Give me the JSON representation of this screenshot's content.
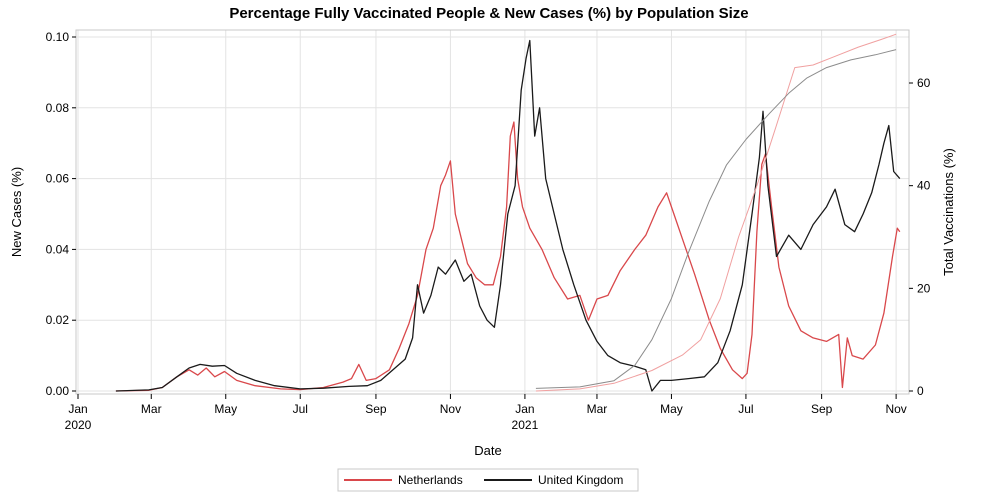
{
  "chart_data": {
    "type": "line",
    "title": "Percentage Fully Vaccinated People & New Cases (%) by Population Size",
    "xlabel": "Date",
    "ylabel_left": "New Cases (%)",
    "ylabel_right": "Total Vaccinations (%)",
    "ylim_left": [
      0,
      0.1
    ],
    "ylim_right": [
      0,
      70
    ],
    "xlim": [
      "2020-01-01",
      "2021-11-05"
    ],
    "grid": true,
    "legend_position": "bottom",
    "yticks_left": [
      "0.00",
      "0.02",
      "0.04",
      "0.06",
      "0.08",
      "0.10"
    ],
    "yticks_left_values": [
      0,
      0.02,
      0.04,
      0.06,
      0.08,
      0.1
    ],
    "yticks_right": [
      "0",
      "20",
      "40",
      "60"
    ],
    "yticks_right_values": [
      0,
      20,
      40,
      60
    ],
    "xticks": [
      {
        "date": "2020-01-01",
        "label": "Jan",
        "label2": "2020"
      },
      {
        "date": "2020-03-01",
        "label": "Mar",
        "label2": ""
      },
      {
        "date": "2020-05-01",
        "label": "May",
        "label2": ""
      },
      {
        "date": "2020-07-01",
        "label": "Jul",
        "label2": ""
      },
      {
        "date": "2020-09-01",
        "label": "Sep",
        "label2": ""
      },
      {
        "date": "2020-11-01",
        "label": "Nov",
        "label2": ""
      },
      {
        "date": "2021-01-01",
        "label": "Jan",
        "label2": "2021"
      },
      {
        "date": "2021-03-01",
        "label": "Mar",
        "label2": ""
      },
      {
        "date": "2021-05-01",
        "label": "May",
        "label2": ""
      },
      {
        "date": "2021-07-01",
        "label": "Jul",
        "label2": ""
      },
      {
        "date": "2021-09-01",
        "label": "Sep",
        "label2": ""
      },
      {
        "date": "2021-11-01",
        "label": "Nov",
        "label2": ""
      }
    ],
    "colors": {
      "Netherlands": "#d9484b",
      "Netherlands_vaccination": "#f0a0a0",
      "United Kingdom": "#1a1a1a",
      "United Kingdom_vaccination": "#8c8c8c"
    },
    "series": [
      {
        "name": "Netherlands",
        "axis": "left",
        "points": [
          [
            "2020-02-01",
            0.0
          ],
          [
            "2020-02-28",
            0.0002
          ],
          [
            "2020-03-10",
            0.001
          ],
          [
            "2020-03-22",
            0.004
          ],
          [
            "2020-04-01",
            0.006
          ],
          [
            "2020-04-08",
            0.0045
          ],
          [
            "2020-04-15",
            0.0065
          ],
          [
            "2020-04-22",
            0.004
          ],
          [
            "2020-04-30",
            0.0055
          ],
          [
            "2020-05-10",
            0.003
          ],
          [
            "2020-05-25",
            0.0015
          ],
          [
            "2020-06-15",
            0.0006
          ],
          [
            "2020-07-01",
            0.0004
          ],
          [
            "2020-07-20",
            0.001
          ],
          [
            "2020-08-05",
            0.0025
          ],
          [
            "2020-08-12",
            0.0035
          ],
          [
            "2020-08-18",
            0.0075
          ],
          [
            "2020-08-24",
            0.003
          ],
          [
            "2020-09-01",
            0.0035
          ],
          [
            "2020-09-12",
            0.006
          ],
          [
            "2020-09-20",
            0.012
          ],
          [
            "2020-09-28",
            0.019
          ],
          [
            "2020-10-05",
            0.027
          ],
          [
            "2020-10-12",
            0.04
          ],
          [
            "2020-10-18",
            0.046
          ],
          [
            "2020-10-24",
            0.058
          ],
          [
            "2020-10-28",
            0.061
          ],
          [
            "2020-11-01",
            0.065
          ],
          [
            "2020-11-05",
            0.05
          ],
          [
            "2020-11-10",
            0.043
          ],
          [
            "2020-11-15",
            0.036
          ],
          [
            "2020-11-22",
            0.032
          ],
          [
            "2020-11-29",
            0.03
          ],
          [
            "2020-12-06",
            0.03
          ],
          [
            "2020-12-12",
            0.038
          ],
          [
            "2020-12-17",
            0.052
          ],
          [
            "2020-12-20",
            0.072
          ],
          [
            "2020-12-23",
            0.076
          ],
          [
            "2020-12-26",
            0.06
          ],
          [
            "2020-12-30",
            0.052
          ],
          [
            "2021-01-05",
            0.046
          ],
          [
            "2021-01-15",
            0.04
          ],
          [
            "2021-01-25",
            0.032
          ],
          [
            "2021-02-05",
            0.026
          ],
          [
            "2021-02-15",
            0.027
          ],
          [
            "2021-02-22",
            0.02
          ],
          [
            "2021-03-01",
            0.026
          ],
          [
            "2021-03-10",
            0.027
          ],
          [
            "2021-03-20",
            0.034
          ],
          [
            "2021-04-01",
            0.04
          ],
          [
            "2021-04-10",
            0.044
          ],
          [
            "2021-04-20",
            0.052
          ],
          [
            "2021-04-27",
            0.056
          ],
          [
            "2021-05-03",
            0.05
          ],
          [
            "2021-05-10",
            0.043
          ],
          [
            "2021-05-20",
            0.033
          ],
          [
            "2021-06-01",
            0.02
          ],
          [
            "2021-06-10",
            0.012
          ],
          [
            "2021-06-20",
            0.006
          ],
          [
            "2021-06-28",
            0.0035
          ],
          [
            "2021-07-02",
            0.005
          ],
          [
            "2021-07-06",
            0.016
          ],
          [
            "2021-07-10",
            0.045
          ],
          [
            "2021-07-14",
            0.064
          ],
          [
            "2021-07-17",
            0.067
          ],
          [
            "2021-07-22",
            0.052
          ],
          [
            "2021-07-28",
            0.035
          ],
          [
            "2021-08-05",
            0.024
          ],
          [
            "2021-08-15",
            0.017
          ],
          [
            "2021-08-25",
            0.015
          ],
          [
            "2021-09-05",
            0.014
          ],
          [
            "2021-09-15",
            0.016
          ],
          [
            "2021-09-18",
            0.001
          ],
          [
            "2021-09-22",
            0.015
          ],
          [
            "2021-09-26",
            0.01
          ],
          [
            "2021-10-05",
            0.009
          ],
          [
            "2021-10-15",
            0.013
          ],
          [
            "2021-10-22",
            0.022
          ],
          [
            "2021-10-29",
            0.038
          ],
          [
            "2021-11-02",
            0.046
          ],
          [
            "2021-11-04",
            0.045
          ]
        ]
      },
      {
        "name": "United Kingdom",
        "axis": "left",
        "points": [
          [
            "2020-02-01",
            0.0
          ],
          [
            "2020-02-28",
            0.0003
          ],
          [
            "2020-03-10",
            0.001
          ],
          [
            "2020-03-22",
            0.004
          ],
          [
            "2020-04-01",
            0.0065
          ],
          [
            "2020-04-10",
            0.0075
          ],
          [
            "2020-04-20",
            0.007
          ],
          [
            "2020-04-30",
            0.0072
          ],
          [
            "2020-05-10",
            0.005
          ],
          [
            "2020-05-25",
            0.003
          ],
          [
            "2020-06-10",
            0.0015
          ],
          [
            "2020-07-01",
            0.0006
          ],
          [
            "2020-07-20",
            0.0008
          ],
          [
            "2020-08-10",
            0.0013
          ],
          [
            "2020-08-25",
            0.0015
          ],
          [
            "2020-09-05",
            0.003
          ],
          [
            "2020-09-15",
            0.006
          ],
          [
            "2020-09-25",
            0.009
          ],
          [
            "2020-10-01",
            0.015
          ],
          [
            "2020-10-05",
            0.03
          ],
          [
            "2020-10-10",
            0.022
          ],
          [
            "2020-10-16",
            0.027
          ],
          [
            "2020-10-22",
            0.035
          ],
          [
            "2020-10-28",
            0.033
          ],
          [
            "2020-11-05",
            0.037
          ],
          [
            "2020-11-12",
            0.031
          ],
          [
            "2020-11-18",
            0.033
          ],
          [
            "2020-11-25",
            0.024
          ],
          [
            "2020-12-01",
            0.02
          ],
          [
            "2020-12-07",
            0.018
          ],
          [
            "2020-12-12",
            0.03
          ],
          [
            "2020-12-18",
            0.05
          ],
          [
            "2020-12-24",
            0.058
          ],
          [
            "2020-12-29",
            0.085
          ],
          [
            "2021-01-02",
            0.094
          ],
          [
            "2021-01-05",
            0.099
          ],
          [
            "2021-01-09",
            0.072
          ],
          [
            "2021-01-13",
            0.08
          ],
          [
            "2021-01-18",
            0.06
          ],
          [
            "2021-01-25",
            0.05
          ],
          [
            "2021-02-01",
            0.04
          ],
          [
            "2021-02-10",
            0.03
          ],
          [
            "2021-02-20",
            0.02
          ],
          [
            "2021-03-01",
            0.014
          ],
          [
            "2021-03-10",
            0.01
          ],
          [
            "2021-03-20",
            0.008
          ],
          [
            "2021-04-01",
            0.007
          ],
          [
            "2021-04-10",
            0.006
          ],
          [
            "2021-04-15",
            0.0
          ],
          [
            "2021-04-22",
            0.003
          ],
          [
            "2021-05-01",
            0.003
          ],
          [
            "2021-05-15",
            0.0035
          ],
          [
            "2021-05-28",
            0.004
          ],
          [
            "2021-06-08",
            0.008
          ],
          [
            "2021-06-18",
            0.017
          ],
          [
            "2021-06-28",
            0.03
          ],
          [
            "2021-07-06",
            0.05
          ],
          [
            "2021-07-12",
            0.066
          ],
          [
            "2021-07-15",
            0.079
          ],
          [
            "2021-07-19",
            0.058
          ],
          [
            "2021-07-26",
            0.038
          ],
          [
            "2021-08-05",
            0.044
          ],
          [
            "2021-08-15",
            0.04
          ],
          [
            "2021-08-25",
            0.047
          ],
          [
            "2021-09-05",
            0.052
          ],
          [
            "2021-09-12",
            0.057
          ],
          [
            "2021-09-20",
            0.047
          ],
          [
            "2021-09-28",
            0.045
          ],
          [
            "2021-10-05",
            0.05
          ],
          [
            "2021-10-12",
            0.056
          ],
          [
            "2021-10-18",
            0.064
          ],
          [
            "2021-10-22",
            0.07
          ],
          [
            "2021-10-26",
            0.075
          ],
          [
            "2021-10-30",
            0.062
          ],
          [
            "2021-11-04",
            0.06
          ]
        ]
      },
      {
        "name": "Netherlands",
        "axis": "right",
        "kind": "vaccination",
        "points": [
          [
            "2021-01-10",
            0.0
          ],
          [
            "2021-02-15",
            0.4
          ],
          [
            "2021-03-15",
            1.5
          ],
          [
            "2021-04-15",
            4.0
          ],
          [
            "2021-05-10",
            7.0
          ],
          [
            "2021-05-25",
            10.0
          ],
          [
            "2021-06-10",
            18.0
          ],
          [
            "2021-06-25",
            30.0
          ],
          [
            "2021-07-10",
            40.0
          ],
          [
            "2021-07-25",
            51.0
          ],
          [
            "2021-08-10",
            63.0
          ],
          [
            "2021-08-25",
            63.5
          ],
          [
            "2021-09-10",
            65.0
          ],
          [
            "2021-10-01",
            67.0
          ],
          [
            "2021-10-20",
            68.5
          ],
          [
            "2021-11-01",
            69.5
          ]
        ]
      },
      {
        "name": "United Kingdom",
        "axis": "right",
        "kind": "vaccination",
        "points": [
          [
            "2021-01-10",
            0.5
          ],
          [
            "2021-02-15",
            0.8
          ],
          [
            "2021-03-15",
            2.0
          ],
          [
            "2021-04-01",
            5.0
          ],
          [
            "2021-04-15",
            10.0
          ],
          [
            "2021-05-01",
            18.0
          ],
          [
            "2021-05-15",
            27.0
          ],
          [
            "2021-06-01",
            37.0
          ],
          [
            "2021-06-15",
            44.0
          ],
          [
            "2021-07-01",
            49.0
          ],
          [
            "2021-07-20",
            54.0
          ],
          [
            "2021-08-05",
            58.0
          ],
          [
            "2021-08-20",
            61.0
          ],
          [
            "2021-09-05",
            63.0
          ],
          [
            "2021-09-25",
            64.5
          ],
          [
            "2021-10-15",
            65.5
          ],
          [
            "2021-11-01",
            66.5
          ]
        ]
      }
    ],
    "legend": [
      {
        "name": "Netherlands",
        "color_key": "Netherlands"
      },
      {
        "name": "United Kingdom",
        "color_key": "United Kingdom"
      }
    ]
  }
}
